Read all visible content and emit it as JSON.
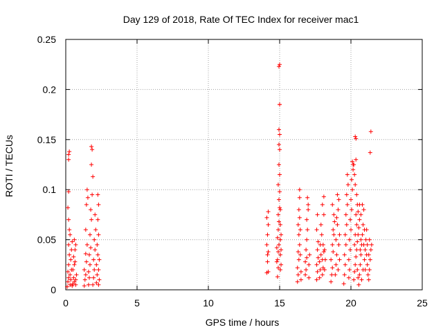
{
  "chart_data": {
    "type": "scatter",
    "title": "Day 129 of 2018, Rate Of TEC Index for receiver mac1",
    "xlabel": "GPS time / hours",
    "ylabel": "ROTI / TECUs",
    "xlim": [
      0,
      25
    ],
    "ylim": [
      0,
      0.25
    ],
    "xticks": [
      0,
      5,
      10,
      15,
      20,
      25
    ],
    "xtick_labels": [
      "0",
      "5",
      "10",
      "15",
      "20",
      "25"
    ],
    "yticks": [
      0,
      0.05,
      0.1,
      0.15,
      0.2,
      0.25
    ],
    "ytick_labels": [
      "0",
      "0.05",
      "0.1",
      "0.15",
      "0.2",
      "0.25"
    ],
    "grid": true,
    "marker": "+",
    "color": "#ff0000",
    "series": [
      {
        "name": "ROTI",
        "points": [
          [
            0.1,
            0.003
          ],
          [
            0.15,
            0.008
          ],
          [
            0.2,
            0.012
          ],
          [
            0.15,
            0.018
          ],
          [
            0.2,
            0.025
          ],
          [
            0.25,
            0.035
          ],
          [
            0.2,
            0.045
          ],
          [
            0.25,
            0.06
          ],
          [
            0.2,
            0.07
          ],
          [
            0.15,
            0.082
          ],
          [
            0.2,
            0.098
          ],
          [
            0.2,
            0.13
          ],
          [
            0.25,
            0.138
          ],
          [
            0.2,
            0.135
          ],
          [
            0.3,
            0.005
          ],
          [
            0.35,
            0.01
          ],
          [
            0.3,
            0.015
          ],
          [
            0.4,
            0.02
          ],
          [
            0.35,
            0.03
          ],
          [
            0.4,
            0.04
          ],
          [
            0.45,
            0.048
          ],
          [
            0.3,
            0.055
          ],
          [
            0.5,
            0.006
          ],
          [
            0.55,
            0.012
          ],
          [
            0.5,
            0.02
          ],
          [
            0.6,
            0.025
          ],
          [
            0.55,
            0.033
          ],
          [
            0.65,
            0.04
          ],
          [
            0.6,
            0.05
          ],
          [
            0.7,
            0.045
          ],
          [
            0.65,
            0.028
          ],
          [
            0.7,
            0.01
          ],
          [
            0.75,
            0.015
          ],
          [
            0.7,
            0.005
          ],
          [
            0.6,
            0.008
          ],
          [
            0.45,
            0.004
          ],
          [
            1.3,
            0.004
          ],
          [
            1.35,
            0.01
          ],
          [
            1.4,
            0.015
          ],
          [
            1.3,
            0.02
          ],
          [
            1.45,
            0.028
          ],
          [
            1.4,
            0.036
          ],
          [
            1.5,
            0.045
          ],
          [
            1.4,
            0.06
          ],
          [
            1.45,
            0.085
          ],
          [
            1.5,
            0.1
          ],
          [
            1.55,
            0.092
          ],
          [
            1.6,
            0.005
          ],
          [
            1.65,
            0.012
          ],
          [
            1.6,
            0.018
          ],
          [
            1.7,
            0.025
          ],
          [
            1.65,
            0.035
          ],
          [
            1.75,
            0.042
          ],
          [
            1.7,
            0.055
          ],
          [
            1.8,
            0.07
          ],
          [
            1.75,
            0.08
          ],
          [
            1.85,
            0.095
          ],
          [
            1.8,
            0.125
          ],
          [
            1.85,
            0.14
          ],
          [
            1.8,
            0.143
          ],
          [
            1.9,
            0.113
          ],
          [
            1.9,
            0.005
          ],
          [
            1.95,
            0.012
          ],
          [
            2.0,
            0.02
          ],
          [
            1.95,
            0.03
          ],
          [
            2.05,
            0.04
          ],
          [
            2.0,
            0.05
          ],
          [
            2.1,
            0.06
          ],
          [
            2.05,
            0.075
          ],
          [
            2.15,
            0.007
          ],
          [
            2.2,
            0.015
          ],
          [
            2.15,
            0.025
          ],
          [
            2.25,
            0.035
          ],
          [
            2.2,
            0.045
          ],
          [
            2.3,
            0.055
          ],
          [
            2.25,
            0.07
          ],
          [
            2.3,
            0.085
          ],
          [
            2.25,
            0.095
          ],
          [
            2.35,
            0.01
          ],
          [
            2.3,
            0.02
          ],
          [
            2.35,
            0.03
          ],
          [
            2.3,
            0.005
          ],
          [
            14.1,
            0.017
          ],
          [
            14.15,
            0.028
          ],
          [
            14.2,
            0.038
          ],
          [
            14.1,
            0.045
          ],
          [
            14.15,
            0.055
          ],
          [
            14.2,
            0.065
          ],
          [
            14.1,
            0.072
          ],
          [
            14.2,
            0.078
          ],
          [
            14.15,
            0.035
          ],
          [
            14.2,
            0.018
          ],
          [
            14.85,
            0.013
          ],
          [
            14.9,
            0.022
          ],
          [
            14.85,
            0.03
          ],
          [
            14.9,
            0.038
          ],
          [
            14.95,
            0.045
          ],
          [
            14.85,
            0.052
          ],
          [
            14.9,
            0.06
          ],
          [
            14.95,
            0.068
          ],
          [
            14.9,
            0.075
          ],
          [
            15.0,
            0.082
          ],
          [
            14.95,
            0.09
          ],
          [
            15.0,
            0.098
          ],
          [
            14.9,
            0.105
          ],
          [
            15.0,
            0.115
          ],
          [
            14.95,
            0.125
          ],
          [
            15.0,
            0.14
          ],
          [
            14.95,
            0.145
          ],
          [
            15.0,
            0.155
          ],
          [
            14.95,
            0.16
          ],
          [
            15.0,
            0.185
          ],
          [
            15.0,
            0.185
          ],
          [
            14.95,
            0.223
          ],
          [
            15.0,
            0.225
          ],
          [
            15.05,
            0.02
          ],
          [
            15.05,
            0.035
          ],
          [
            15.05,
            0.05
          ],
          [
            15.05,
            0.065
          ],
          [
            15.05,
            0.08
          ],
          [
            15.1,
            0.04
          ],
          [
            15.1,
            0.055
          ],
          [
            14.8,
            0.028
          ],
          [
            14.8,
            0.042
          ],
          [
            15.1,
            0.025
          ],
          [
            16.25,
            0.008
          ],
          [
            16.3,
            0.015
          ],
          [
            16.25,
            0.022
          ],
          [
            16.35,
            0.03
          ],
          [
            16.3,
            0.038
          ],
          [
            16.4,
            0.045
          ],
          [
            16.35,
            0.055
          ],
          [
            16.3,
            0.065
          ],
          [
            16.4,
            0.072
          ],
          [
            16.35,
            0.08
          ],
          [
            16.4,
            0.092
          ],
          [
            16.4,
            0.1
          ],
          [
            16.45,
            0.06
          ],
          [
            16.45,
            0.035
          ],
          [
            16.5,
            0.018
          ],
          [
            16.5,
            0.01
          ],
          [
            16.8,
            0.015
          ],
          [
            16.85,
            0.02
          ],
          [
            16.8,
            0.028
          ],
          [
            16.9,
            0.032
          ],
          [
            16.85,
            0.04
          ],
          [
            16.9,
            0.05
          ],
          [
            16.95,
            0.06
          ],
          [
            16.9,
            0.07
          ],
          [
            17.0,
            0.08
          ],
          [
            16.95,
            0.092
          ],
          [
            17.0,
            0.085
          ],
          [
            17.05,
            0.025
          ],
          [
            17.05,
            0.012
          ],
          [
            17.1,
            0.035
          ],
          [
            17.6,
            0.01
          ],
          [
            17.65,
            0.018
          ],
          [
            17.6,
            0.025
          ],
          [
            17.7,
            0.032
          ],
          [
            17.65,
            0.04
          ],
          [
            17.7,
            0.048
          ],
          [
            17.6,
            0.06
          ],
          [
            17.65,
            0.075
          ],
          [
            17.8,
            0.012
          ],
          [
            17.85,
            0.02
          ],
          [
            17.8,
            0.028
          ],
          [
            17.9,
            0.035
          ],
          [
            17.85,
            0.045
          ],
          [
            17.95,
            0.055
          ],
          [
            17.9,
            0.065
          ],
          [
            18.0,
            0.015
          ],
          [
            18.05,
            0.022
          ],
          [
            18.0,
            0.03
          ],
          [
            18.1,
            0.038
          ],
          [
            18.05,
            0.045
          ],
          [
            18.15,
            0.02
          ],
          [
            18.1,
            0.075
          ],
          [
            18.2,
            0.03
          ],
          [
            18.15,
            0.04
          ],
          [
            18.0,
            0.085
          ],
          [
            18.1,
            0.093
          ],
          [
            18.6,
            0.008
          ],
          [
            18.65,
            0.015
          ],
          [
            18.7,
            0.022
          ],
          [
            18.6,
            0.03
          ],
          [
            18.75,
            0.038
          ],
          [
            18.7,
            0.045
          ],
          [
            18.8,
            0.055
          ],
          [
            18.75,
            0.06
          ],
          [
            18.85,
            0.068
          ],
          [
            18.8,
            0.075
          ],
          [
            18.7,
            0.085
          ],
          [
            18.9,
            0.015
          ],
          [
            18.95,
            0.025
          ],
          [
            19.0,
            0.035
          ],
          [
            18.95,
            0.05
          ],
          [
            19.05,
            0.065
          ],
          [
            19.0,
            0.072
          ],
          [
            19.1,
            0.08
          ],
          [
            19.1,
            0.02
          ],
          [
            19.15,
            0.045
          ],
          [
            19.15,
            0.09
          ],
          [
            19.05,
            0.095
          ],
          [
            19.2,
            0.03
          ],
          [
            19.2,
            0.055
          ],
          [
            19.5,
            0.006
          ],
          [
            19.55,
            0.015
          ],
          [
            19.6,
            0.025
          ],
          [
            19.55,
            0.035
          ],
          [
            19.65,
            0.045
          ],
          [
            19.6,
            0.055
          ],
          [
            19.7,
            0.065
          ],
          [
            19.65,
            0.075
          ],
          [
            19.75,
            0.085
          ],
          [
            19.7,
            0.095
          ],
          [
            19.8,
            0.105
          ],
          [
            19.75,
            0.115
          ],
          [
            19.85,
            0.012
          ],
          [
            19.9,
            0.02
          ],
          [
            19.85,
            0.03
          ],
          [
            19.95,
            0.04
          ],
          [
            19.9,
            0.05
          ],
          [
            20.0,
            0.06
          ],
          [
            19.95,
            0.07
          ],
          [
            20.05,
            0.08
          ],
          [
            20.0,
            0.09
          ],
          [
            20.1,
            0.1
          ],
          [
            20.05,
            0.11
          ],
          [
            20.15,
            0.12
          ],
          [
            20.1,
            0.128
          ],
          [
            20.2,
            0.125
          ],
          [
            20.25,
            0.115
          ],
          [
            20.3,
            0.105
          ],
          [
            20.15,
            0.125
          ],
          [
            20.3,
            0.153
          ],
          [
            20.35,
            0.151
          ],
          [
            20.35,
            0.13
          ],
          [
            20.4,
            0.095
          ],
          [
            20.45,
            0.085
          ],
          [
            20.2,
            0.01
          ],
          [
            20.25,
            0.018
          ],
          [
            20.3,
            0.025
          ],
          [
            20.35,
            0.033
          ],
          [
            20.4,
            0.04
          ],
          [
            20.45,
            0.048
          ],
          [
            20.5,
            0.055
          ],
          [
            20.55,
            0.062
          ],
          [
            20.6,
            0.07
          ],
          [
            20.5,
            0.078
          ],
          [
            20.6,
            0.085
          ],
          [
            20.4,
            0.065
          ],
          [
            20.25,
            0.045
          ],
          [
            20.3,
            0.055
          ],
          [
            20.35,
            0.075
          ],
          [
            20.45,
            0.02
          ],
          [
            20.5,
            0.012
          ],
          [
            20.55,
            0.005
          ],
          [
            20.6,
            0.015
          ],
          [
            20.65,
            0.025
          ],
          [
            20.7,
            0.035
          ],
          [
            20.75,
            0.045
          ],
          [
            20.8,
            0.055
          ],
          [
            20.85,
            0.065
          ],
          [
            20.7,
            0.075
          ],
          [
            20.8,
            0.085
          ],
          [
            20.9,
            0.08
          ],
          [
            20.9,
            0.045
          ],
          [
            20.95,
            0.03
          ],
          [
            21.0,
            0.02
          ],
          [
            20.95,
            0.06
          ],
          [
            21.0,
            0.04
          ],
          [
            21.05,
            0.05
          ],
          [
            21.1,
            0.035
          ],
          [
            21.15,
            0.025
          ],
          [
            21.2,
            0.015
          ],
          [
            21.25,
            0.01
          ],
          [
            21.3,
            0.02
          ],
          [
            21.35,
            0.03
          ],
          [
            21.4,
            0.04
          ],
          [
            21.45,
            0.045
          ],
          [
            21.3,
            0.05
          ],
          [
            21.25,
            0.035
          ],
          [
            21.15,
            0.045
          ],
          [
            21.1,
            0.06
          ],
          [
            20.65,
            0.04
          ],
          [
            20.7,
            0.05
          ],
          [
            20.75,
            0.01
          ],
          [
            20.85,
            0.02
          ],
          [
            21.35,
            0.137
          ],
          [
            21.4,
            0.158
          ]
        ]
      }
    ]
  }
}
